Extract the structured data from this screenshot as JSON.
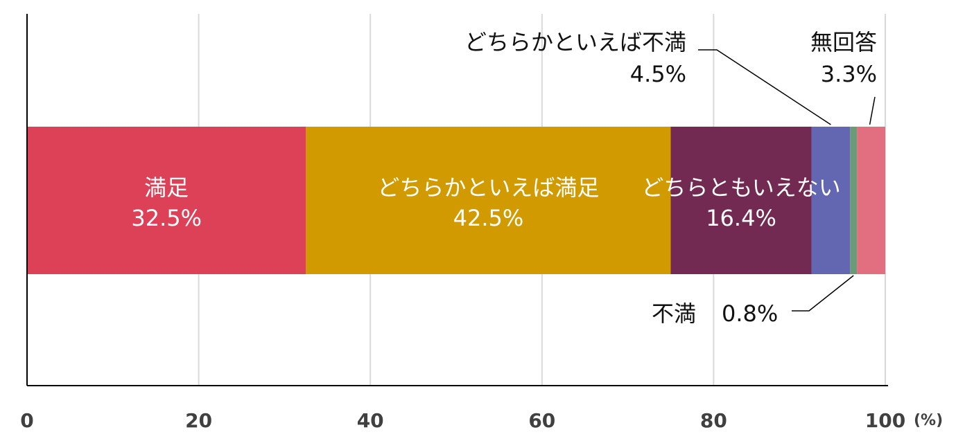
{
  "chart_data": {
    "type": "bar",
    "orientation": "horizontal",
    "stacked": true,
    "x_unit": "(%)",
    "xlim": [
      0,
      100
    ],
    "x_ticks": [
      "0",
      "20",
      "40",
      "60",
      "80",
      "100"
    ],
    "grid": true,
    "series": [
      {
        "name": "満足",
        "value": 32.5,
        "value_label": "32.5%",
        "color": "#dc4157"
      },
      {
        "name": "どちらかといえば満足",
        "value": 42.5,
        "value_label": "42.5%",
        "color": "#d19b00"
      },
      {
        "name": "どちらともいえない",
        "value": 16.4,
        "value_label": "16.4%",
        "color": "#722952"
      },
      {
        "name": "どちらかといえば不満",
        "value": 4.5,
        "value_label": "4.5%",
        "color": "#6366b0"
      },
      {
        "name": "不満",
        "value": 0.8,
        "value_label": "0.8%",
        "color": "#6a9a78"
      },
      {
        "name": "無回答",
        "value": 3.3,
        "value_label": "3.3%",
        "color": "#e26f7f"
      }
    ]
  }
}
